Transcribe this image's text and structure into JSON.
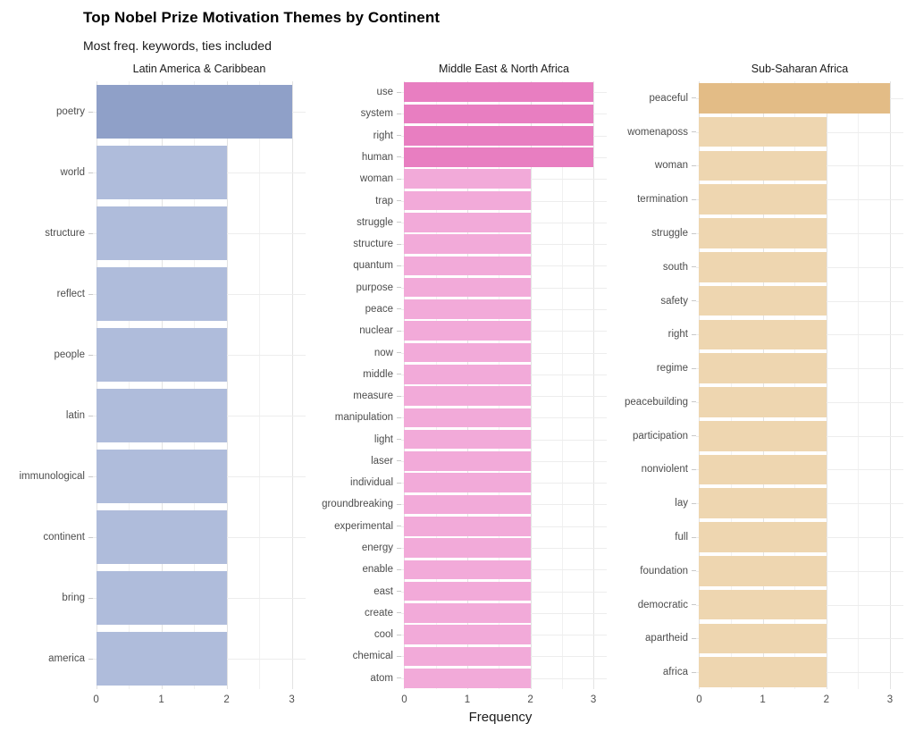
{
  "header": {
    "title": "Top Nobel Prize Motivation Themes by Continent",
    "subtitle": "Most freq. keywords, ties included"
  },
  "chart_data": {
    "type": "bar",
    "orientation": "horizontal",
    "xlabel": "Frequency",
    "xlim": [
      0,
      3
    ],
    "x_ticks": [
      "0",
      "1",
      "2",
      "3"
    ],
    "gridlines": {
      "major_every": 1,
      "minor_every": 0.5,
      "grid_on": true
    },
    "legend": "none",
    "facets": [
      {
        "strip": "Latin America & Caribbean",
        "colors": {
          "full": "#8fa0c8",
          "light": "#afbcdb"
        },
        "items": [
          {
            "label": "poetry",
            "value": 3
          },
          {
            "label": "world",
            "value": 2
          },
          {
            "label": "structure",
            "value": 2
          },
          {
            "label": "reflect",
            "value": 2
          },
          {
            "label": "people",
            "value": 2
          },
          {
            "label": "latin",
            "value": 2
          },
          {
            "label": "immunological",
            "value": 2
          },
          {
            "label": "continent",
            "value": 2
          },
          {
            "label": "bring",
            "value": 2
          },
          {
            "label": "america",
            "value": 2
          }
        ]
      },
      {
        "strip": "Middle East & North Africa",
        "colors": {
          "full": "#e87ec1",
          "light": "#f2aad9"
        },
        "items": [
          {
            "label": "use",
            "value": 3
          },
          {
            "label": "system",
            "value": 3
          },
          {
            "label": "right",
            "value": 3
          },
          {
            "label": "human",
            "value": 3
          },
          {
            "label": "woman",
            "value": 2
          },
          {
            "label": "trap",
            "value": 2
          },
          {
            "label": "struggle",
            "value": 2
          },
          {
            "label": "structure",
            "value": 2
          },
          {
            "label": "quantum",
            "value": 2
          },
          {
            "label": "purpose",
            "value": 2
          },
          {
            "label": "peace",
            "value": 2
          },
          {
            "label": "nuclear",
            "value": 2
          },
          {
            "label": "now",
            "value": 2
          },
          {
            "label": "middle",
            "value": 2
          },
          {
            "label": "measure",
            "value": 2
          },
          {
            "label": "manipulation",
            "value": 2
          },
          {
            "label": "light",
            "value": 2
          },
          {
            "label": "laser",
            "value": 2
          },
          {
            "label": "individual",
            "value": 2
          },
          {
            "label": "groundbreaking",
            "value": 2
          },
          {
            "label": "experimental",
            "value": 2
          },
          {
            "label": "energy",
            "value": 2
          },
          {
            "label": "enable",
            "value": 2
          },
          {
            "label": "east",
            "value": 2
          },
          {
            "label": "create",
            "value": 2
          },
          {
            "label": "cool",
            "value": 2
          },
          {
            "label": "chemical",
            "value": 2
          },
          {
            "label": "atom",
            "value": 2
          }
        ]
      },
      {
        "strip": "Sub-Saharan Africa",
        "colors": {
          "full": "#e3bc86",
          "light": "#eed6b0"
        },
        "items": [
          {
            "label": "peaceful",
            "value": 3
          },
          {
            "label": "womenaposs",
            "value": 2
          },
          {
            "label": "woman",
            "value": 2
          },
          {
            "label": "termination",
            "value": 2
          },
          {
            "label": "struggle",
            "value": 2
          },
          {
            "label": "south",
            "value": 2
          },
          {
            "label": "safety",
            "value": 2
          },
          {
            "label": "right",
            "value": 2
          },
          {
            "label": "regime",
            "value": 2
          },
          {
            "label": "peacebuilding",
            "value": 2
          },
          {
            "label": "participation",
            "value": 2
          },
          {
            "label": "nonviolent",
            "value": 2
          },
          {
            "label": "lay",
            "value": 2
          },
          {
            "label": "full",
            "value": 2
          },
          {
            "label": "foundation",
            "value": 2
          },
          {
            "label": "democratic",
            "value": 2
          },
          {
            "label": "apartheid",
            "value": 2
          },
          {
            "label": "africa",
            "value": 2
          }
        ]
      }
    ]
  }
}
